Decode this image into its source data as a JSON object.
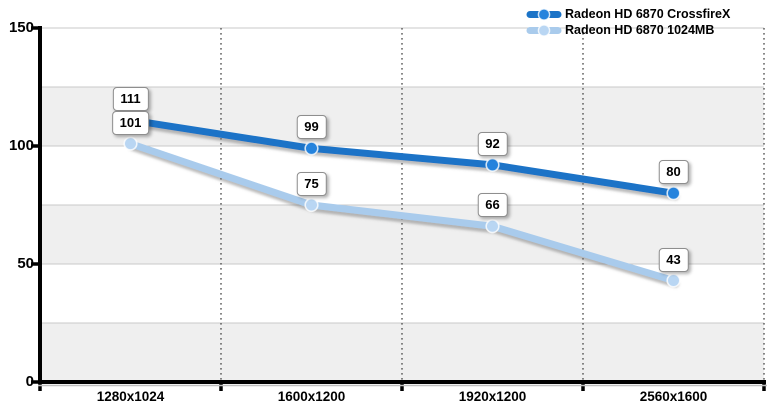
{
  "chart_data": {
    "type": "line",
    "title": "",
    "xlabel": "",
    "ylabel": "",
    "categories": [
      "1280x1024",
      "1600x1200",
      "1920x1200",
      "2560x1600"
    ],
    "series": [
      {
        "name": "Radeon HD 6870 CrossfireX",
        "values": [
          111,
          99,
          92,
          80
        ],
        "color": "#1b73c7",
        "marker_color": "#2583dd"
      },
      {
        "name": "Radeon HD 6870 1024MB",
        "values": [
          101,
          75,
          66,
          43
        ],
        "color": "#a9cbec",
        "marker_color": "#b9d6f3"
      }
    ],
    "ylim": [
      0,
      150
    ],
    "yticks": [
      0,
      50,
      100,
      150
    ],
    "band_step": 25,
    "grid": "on",
    "vertical_gridlines": "dotted-at-category-boundaries",
    "legend_position": "top-right",
    "point_labels": true
  },
  "colors": {
    "background": "#ffffff",
    "band": "#efefef",
    "gridline": "#c9c9c9",
    "dotted_line": "#555555",
    "axis": "#000000",
    "label_box_bg": "#ffffff",
    "label_box_border": "#8e8e8e",
    "text": "#000000"
  }
}
